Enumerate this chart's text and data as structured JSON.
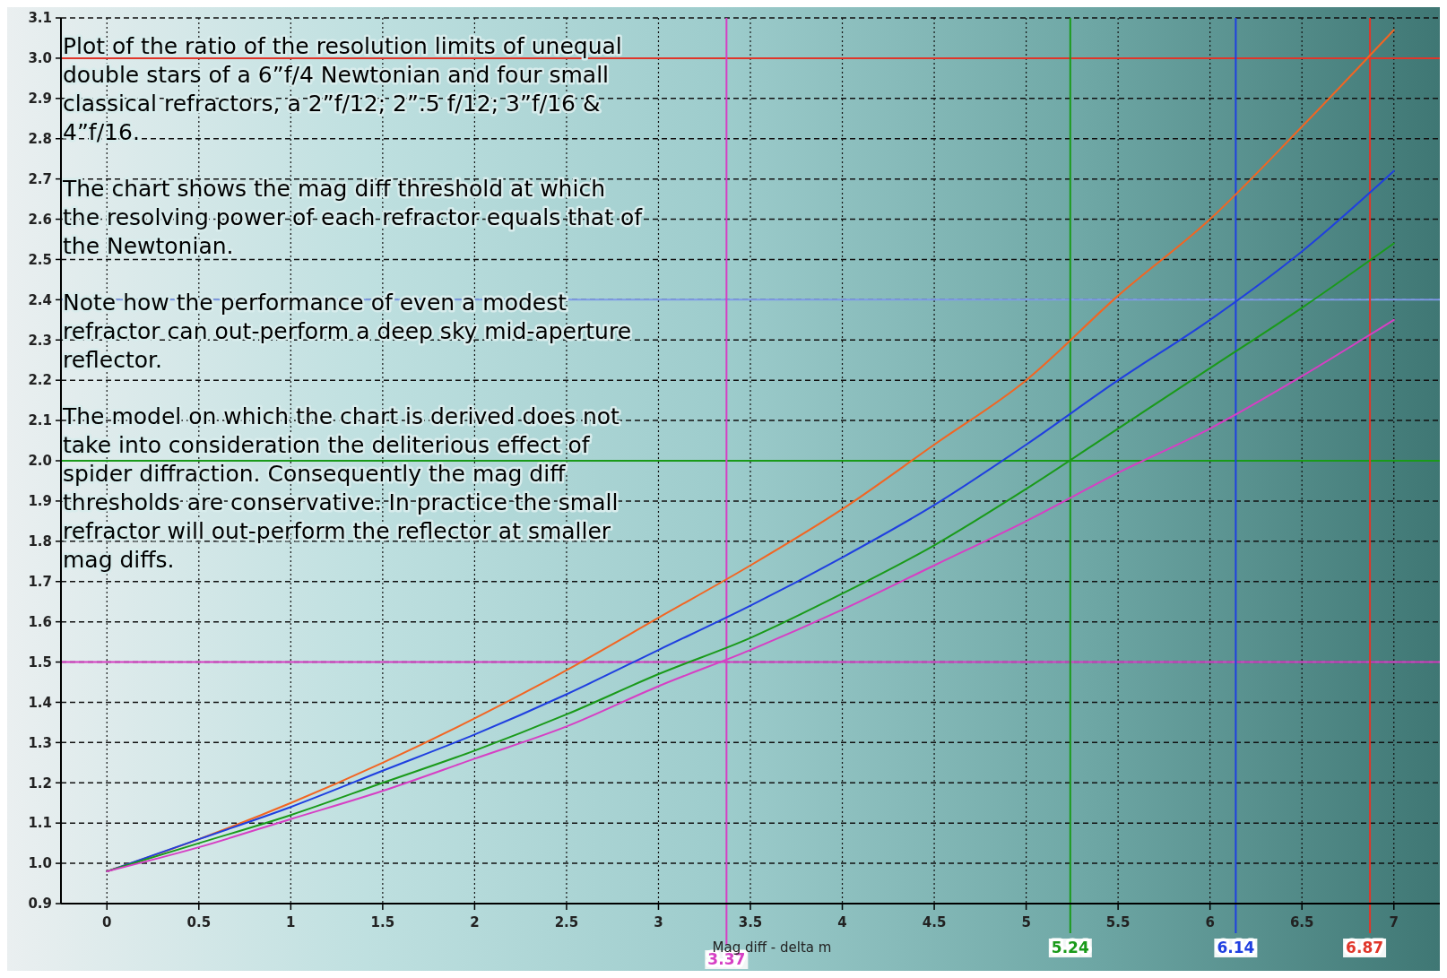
{
  "chart_data": {
    "type": "line",
    "xlabel": "Mag diff - delta m",
    "x": [
      0,
      0.5,
      1,
      1.5,
      2,
      2.5,
      3,
      3.5,
      4,
      4.5,
      5,
      5.5,
      6,
      6.5,
      7
    ],
    "series": [
      {
        "color": "#f26522",
        "values": [
          0.98,
          1.06,
          1.15,
          1.25,
          1.36,
          1.48,
          1.61,
          1.74,
          1.88,
          2.04,
          2.2,
          2.41,
          2.6,
          2.83,
          3.07
        ]
      },
      {
        "color": "#1f3fe0",
        "values": [
          0.98,
          1.06,
          1.14,
          1.23,
          1.32,
          1.42,
          1.53,
          1.64,
          1.76,
          1.89,
          2.04,
          2.2,
          2.35,
          2.52,
          2.72
        ]
      },
      {
        "color": "#1a9a1a",
        "values": [
          0.98,
          1.05,
          1.12,
          1.2,
          1.28,
          1.37,
          1.47,
          1.56,
          1.67,
          1.79,
          1.93,
          2.08,
          2.23,
          2.38,
          2.54
        ]
      },
      {
        "color": "#d63fc4",
        "values": [
          0.98,
          1.04,
          1.11,
          1.18,
          1.26,
          1.34,
          1.44,
          1.53,
          1.63,
          1.74,
          1.85,
          1.97,
          2.08,
          2.21,
          2.35
        ]
      }
    ],
    "xlim": [
      -0.25,
      7.25
    ],
    "xticks": [
      0,
      0.5,
      1,
      1.5,
      2,
      2.5,
      3,
      3.5,
      4,
      4.5,
      5,
      5.5,
      6,
      6.5,
      7
    ],
    "ylim": [
      0.9,
      3.1
    ],
    "yticks": [
      0.9,
      {
        "value": 1,
        "label": "1.0"
      },
      1.1,
      1.2,
      1.3,
      1.4,
      1.5,
      1.6,
      1.7,
      1.8,
      1.9,
      {
        "value": 2,
        "label": "2.0"
      },
      2.1,
      2.2,
      2.3,
      2.4,
      2.5,
      2.6,
      2.7,
      2.8,
      2.9,
      {
        "value": 3,
        "label": "3.0"
      },
      3.1
    ],
    "grid": true,
    "line_style": "solid",
    "marker": "none",
    "ref_lines": [
      {
        "axis": "y",
        "value": 3.0,
        "color": "#e0362a"
      },
      {
        "axis": "y",
        "value": 2.4,
        "color": "#7f9be8"
      },
      {
        "axis": "y",
        "value": 2.0,
        "color": "#1a9a1a"
      },
      {
        "axis": "y",
        "value": 1.5,
        "color": "#d63fc4"
      },
      {
        "axis": "x",
        "value": 6.87,
        "label": "6.87",
        "color": "#e0362a"
      },
      {
        "axis": "x",
        "value": 6.14,
        "label": "6.14",
        "color": "#1f3fe0"
      },
      {
        "axis": "x",
        "value": 5.24,
        "label": "5.24",
        "color": "#1a9a1a"
      },
      {
        "axis": "x",
        "value": 3.37,
        "label": "3.37",
        "color": "#d63fc4"
      }
    ],
    "annotations": [
      "Plot of the ratio of the resolution limits of unequal double stars of a 6”f/4 Newtonian and four small classical refractors, a 2”f/12; 2”.5 f/12; 3”f/16 & 4”f/16.",
      "The chart shows the mag diff threshold at which the resolving power of each refractor equals that of the Newtonian.",
      "Note how the performance of even a modest refractor can out-perform a deep sky mid-aperture reflector.",
      "The model on which the chart is derived does not take into consideration the deliterious effect of spider diffraction. Consequently the mag diff thresholds are conservative. In practice the small refractor will out-perform the reflector at smaller mag diffs."
    ]
  }
}
